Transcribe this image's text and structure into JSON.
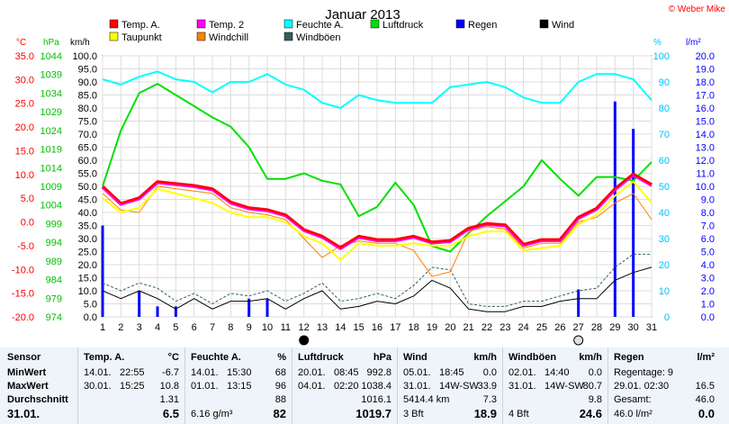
{
  "chart_data": {
    "type": "line",
    "title": "Januar 2013",
    "credit": "© Weber Mike",
    "x_ticks": [
      "1",
      "2",
      "3",
      "4",
      "5",
      "6",
      "7",
      "8",
      "9",
      "10",
      "11",
      "12",
      "13",
      "14",
      "15",
      "16",
      "17",
      "18",
      "19",
      "20",
      "21",
      "22",
      "23",
      "24",
      "25",
      "26",
      "27",
      "28",
      "29",
      "30",
      "31"
    ],
    "xlim": [
      1,
      31
    ],
    "axes": {
      "temp": {
        "unit": "°C",
        "range": [
          -20,
          35
        ],
        "ticks": [
          "35.0",
          "30.0",
          "25.0",
          "20.0",
          "15.0",
          "10.0",
          "5.0",
          "0.0",
          "-5.0",
          "-10.0",
          "-15.0",
          "-20.0"
        ],
        "color": "#ff0000"
      },
      "pressure": {
        "unit": "hPa",
        "range": [
          974,
          1044
        ],
        "ticks": [
          "1044",
          "1039",
          "1034",
          "1029",
          "1024",
          "1019",
          "1014",
          "1009",
          "1004",
          "999",
          "994",
          "989",
          "984",
          "979",
          "974"
        ],
        "color": "#00c000"
      },
      "wind": {
        "unit": "km/h",
        "range": [
          0,
          100
        ],
        "ticks": [
          "100.0",
          "95.0",
          "90.0",
          "85.0",
          "80.0",
          "75.0",
          "70.0",
          "65.0",
          "60.0",
          "55.0",
          "50.0",
          "45.0",
          "40.0",
          "35.0",
          "30.0",
          "25.0",
          "20.0",
          "15.0",
          "10.0",
          "5.0",
          "0.0"
        ],
        "color": "#000000"
      },
      "humidity": {
        "unit": "%",
        "range": [
          0,
          100
        ],
        "ticks": [
          "100",
          "90",
          "80",
          "70",
          "60",
          "50",
          "40",
          "30",
          "20",
          "10",
          "0"
        ],
        "color": "#00c0ff"
      },
      "rain": {
        "unit": "l/m²",
        "range": [
          0,
          20
        ],
        "ticks": [
          "20.0",
          "19.0",
          "18.0",
          "17.0",
          "16.0",
          "15.0",
          "14.0",
          "13.0",
          "12.0",
          "11.0",
          "10.0",
          "9.0",
          "8.0",
          "7.0",
          "6.0",
          "5.0",
          "4.0",
          "3.0",
          "2.0",
          "1.0",
          "0.0"
        ],
        "color": "#0000ff"
      }
    },
    "legend": [
      {
        "name": "Temp. A.",
        "color": "#ff0000"
      },
      {
        "name": "Temp. 2",
        "color": "#ff00ff"
      },
      {
        "name": "Feuchte A.",
        "color": "#00ffff"
      },
      {
        "name": "Luftdruck",
        "color": "#00e000"
      },
      {
        "name": "Regen",
        "color": "#0000ff"
      },
      {
        "name": "Wind",
        "color": "#000000"
      },
      {
        "name": "Taupunkt",
        "color": "#ffff00"
      },
      {
        "name": "Windchill",
        "color": "#ff8000"
      },
      {
        "name": "Windböen",
        "color": "#306060"
      }
    ],
    "series": [
      {
        "name": "Temp. A.",
        "axis": "temp",
        "color": "#ff0000",
        "x": [
          1,
          2,
          3,
          4,
          5,
          6,
          7,
          8,
          9,
          10,
          11,
          12,
          13,
          14,
          15,
          16,
          17,
          18,
          19,
          20,
          21,
          22,
          23,
          24,
          25,
          26,
          27,
          28,
          29,
          30,
          31
        ],
        "values": [
          7.4,
          3.8,
          5.0,
          8.4,
          8.0,
          7.6,
          6.9,
          4.1,
          2.9,
          2.5,
          1.4,
          -1.7,
          -3.1,
          -5.5,
          -3.1,
          -3.8,
          -3.8,
          -3.1,
          -4.3,
          -4.0,
          -1.4,
          -0.4,
          -0.7,
          -4.8,
          -3.8,
          -3.8,
          0.9,
          2.8,
          6.9,
          10.0,
          7.8
        ]
      },
      {
        "name": "Temp. 2",
        "axis": "temp",
        "color": "#ff00ff",
        "x": [
          1,
          2,
          3,
          4,
          5,
          6,
          7,
          8,
          9,
          10,
          11,
          12,
          13,
          14,
          15,
          16,
          17,
          18,
          19,
          20,
          21,
          22,
          23,
          24,
          25,
          26,
          27,
          28,
          29,
          30,
          31
        ],
        "values": [
          7.1,
          3.6,
          4.7,
          8.1,
          7.7,
          7.3,
          6.6,
          3.8,
          2.6,
          2.2,
          1.1,
          -2.0,
          -3.4,
          -5.8,
          -3.4,
          -4.1,
          -4.1,
          -3.4,
          -4.6,
          -4.3,
          -1.7,
          -0.7,
          -1.0,
          -5.1,
          -4.1,
          -4.1,
          0.6,
          2.5,
          6.6,
          9.7,
          7.5
        ]
      },
      {
        "name": "Taupunkt",
        "axis": "temp",
        "color": "#ffff00",
        "x": [
          1,
          2,
          3,
          4,
          5,
          6,
          7,
          8,
          9,
          10,
          11,
          12,
          13,
          14,
          15,
          16,
          17,
          18,
          19,
          20,
          21,
          22,
          23,
          24,
          25,
          26,
          27,
          28,
          29,
          30,
          31
        ],
        "values": [
          5.0,
          2.0,
          3.0,
          7.0,
          6.0,
          5.0,
          4.0,
          2.0,
          1.0,
          1.0,
          0.0,
          -3.0,
          -4.5,
          -8.0,
          -4.5,
          -5.0,
          -5.0,
          -4.5,
          -5.0,
          -5.0,
          -3.0,
          -2.0,
          -2.0,
          -6.0,
          -5.5,
          -5.0,
          -0.5,
          1.5,
          5.5,
          8.5,
          4.0
        ]
      },
      {
        "name": "Windchill",
        "axis": "temp",
        "color": "#ff8000",
        "x": [
          1,
          2,
          3,
          4,
          5,
          6,
          7,
          8,
          9,
          10,
          11,
          12,
          13,
          14,
          15,
          16,
          17,
          18,
          19,
          20,
          21,
          22,
          23,
          24,
          25,
          26,
          27,
          28,
          29,
          30,
          31
        ],
        "values": [
          6.0,
          2.5,
          2.0,
          7.5,
          7.0,
          6.5,
          6.0,
          3.0,
          2.0,
          1.5,
          0.5,
          -3.5,
          -7.5,
          -5.0,
          -4.0,
          -4.5,
          -4.5,
          -6.0,
          -11.5,
          -10.5,
          -2.0,
          -1.0,
          -1.5,
          -5.5,
          -4.5,
          -4.5,
          0.0,
          1.0,
          4.0,
          6.0,
          0.5
        ]
      },
      {
        "name": "Feuchte A.",
        "axis": "humidity",
        "color": "#00ffff",
        "x": [
          1,
          2,
          3,
          4,
          5,
          6,
          7,
          8,
          9,
          10,
          11,
          12,
          13,
          14,
          15,
          16,
          17,
          18,
          19,
          20,
          21,
          22,
          23,
          24,
          25,
          26,
          27,
          28,
          29,
          30,
          31
        ],
        "values": [
          91,
          89,
          92,
          94,
          91,
          90,
          86,
          90,
          90,
          93,
          89,
          87,
          82,
          80,
          85,
          83,
          82,
          82,
          82,
          88,
          89,
          90,
          88,
          84,
          82,
          82,
          90,
          93,
          93,
          91,
          83
        ]
      },
      {
        "name": "Luftdruck",
        "axis": "pressure",
        "color": "#00e000",
        "x": [
          1,
          2,
          3,
          4,
          5,
          6,
          7,
          8,
          9,
          10,
          11,
          12,
          13,
          14,
          15,
          16,
          17,
          18,
          19,
          20,
          21,
          22,
          23,
          24,
          25,
          26,
          27,
          28,
          29,
          30,
          31
        ],
        "values": [
          1009.0,
          1024.0,
          1034.0,
          1036.5,
          1033.5,
          1030.5,
          1027.5,
          1025.0,
          1019.5,
          1011.0,
          1011.0,
          1012.5,
          1010.5,
          1009.5,
          1001.0,
          1003.5,
          1010.0,
          1004.0,
          993.0,
          991.5,
          996.5,
          1001.0,
          1005.0,
          1009.0,
          1016.0,
          1011.0,
          1006.5,
          1011.5,
          1011.5,
          1010.5,
          1015.5
        ]
      },
      {
        "name": "Wind",
        "axis": "wind",
        "color": "#000000",
        "x": [
          1,
          2,
          3,
          4,
          5,
          6,
          7,
          8,
          9,
          10,
          11,
          12,
          13,
          14,
          15,
          16,
          17,
          18,
          19,
          20,
          21,
          22,
          23,
          24,
          25,
          26,
          27,
          28,
          29,
          30,
          31
        ],
        "values": [
          10.0,
          7.0,
          10.0,
          7.0,
          3.0,
          7.0,
          3.0,
          6.0,
          6.0,
          7.0,
          3.0,
          7.0,
          10.0,
          3.0,
          4.0,
          6.0,
          5.0,
          8.0,
          14.0,
          11.0,
          3.0,
          2.0,
          2.0,
          4.0,
          4.0,
          6.0,
          7.0,
          7.0,
          14.0,
          17.0,
          19.0
        ]
      },
      {
        "name": "Windböen",
        "axis": "wind",
        "color": "#306060",
        "x": [
          1,
          2,
          3,
          4,
          5,
          6,
          7,
          8,
          9,
          10,
          11,
          12,
          13,
          14,
          15,
          16,
          17,
          18,
          19,
          20,
          21,
          22,
          23,
          24,
          25,
          26,
          27,
          28,
          29,
          30,
          31
        ],
        "values": [
          13.0,
          10.0,
          13.0,
          11.0,
          6.0,
          9.0,
          5.0,
          9.0,
          8.0,
          10.0,
          6.0,
          9.0,
          13.0,
          6.0,
          7.0,
          9.0,
          7.0,
          12.0,
          19.0,
          18.0,
          5.0,
          4.0,
          4.0,
          6.0,
          6.0,
          8.0,
          10.0,
          11.0,
          19.0,
          24.0,
          24.0
        ]
      }
    ],
    "rain_bars": {
      "name": "Regen",
      "axis": "rain",
      "color": "#0000ff",
      "x": [
        1,
        3,
        4,
        5,
        9,
        10,
        27,
        29,
        30
      ],
      "values": [
        7.0,
        2.0,
        0.8,
        0.8,
        1.4,
        1.4,
        2.1,
        16.5,
        14.4
      ]
    },
    "moon_markers": [
      {
        "x": 12,
        "phase": "new"
      },
      {
        "x": 27,
        "phase": "full"
      }
    ]
  },
  "stats": {
    "sensor": {
      "header": "Sensor",
      "rows": [
        "MinWert",
        "MaxWert",
        "Durchschnitt",
        "31.01."
      ]
    },
    "temp": {
      "header": "Temp. A.",
      "unit": "°C",
      "min": {
        "date": "14.01.",
        "time": "22:55",
        "value": "-6.7"
      },
      "max": {
        "date": "30.01.",
        "time": "15:25",
        "value": "10.8"
      },
      "avg": "1.31",
      "current": "6.5"
    },
    "humidity": {
      "header": "Feuchte A.",
      "unit": "%",
      "min": {
        "date": "14.01.",
        "time": "15:30",
        "value": "68"
      },
      "max": {
        "date": "01.01.",
        "time": "13:15",
        "value": "96"
      },
      "avg": "88",
      "current_abs": "6.16 g/m³",
      "current": "82"
    },
    "pressure": {
      "header": "Luftdruck",
      "unit": "hPa",
      "min": {
        "date": "20.01.",
        "time": "08:45",
        "value": "992.8"
      },
      "max": {
        "date": "04.01.",
        "time": "02:20",
        "value": "1038.4"
      },
      "avg": "1016.1",
      "current": "1019.7"
    },
    "wind": {
      "header": "Wind",
      "unit": "km/h",
      "min": {
        "date": "05.01.",
        "time": "18:45",
        "value": "0.0"
      },
      "max": {
        "date": "31.01.",
        "time": "14W-SW",
        "value": "33.9"
      },
      "avg_label": "5414.4 km",
      "avg": "7.3",
      "current_label": "3 Bft",
      "current": "18.9"
    },
    "gusts": {
      "header": "Windböen",
      "unit": "km/h",
      "min": {
        "date": "02.01.",
        "time": "14:40",
        "value": "0.0"
      },
      "max": {
        "date": "31.01.",
        "time": "14W-SW",
        "value": "80.7"
      },
      "avg": "9.8",
      "current_label": "4 Bft",
      "current": "24.6"
    },
    "rain": {
      "header": "Regen",
      "unit": "l/m²",
      "row1": "Regentage: 9",
      "row2_label": "29.01.  02:30",
      "row2_value": "16.5",
      "row3_label": "Gesamt:",
      "row3_value": "46.0",
      "row4_label": "46.0 l/m²",
      "row4_value": "0.0"
    }
  }
}
